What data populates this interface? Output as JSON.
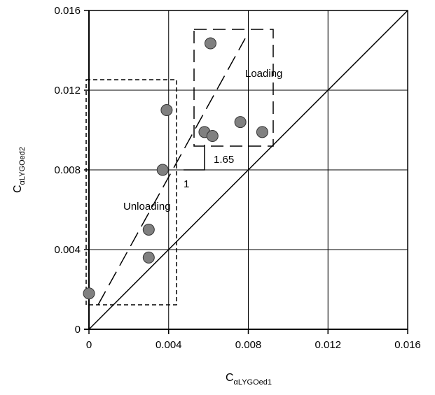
{
  "chart_data": {
    "type": "scatter",
    "x_label": "C",
    "x_label_sub": "αLYGOed1",
    "y_label": "C",
    "y_label_sub": "αLYGOed2",
    "x": [
      0,
      0.003,
      0.003,
      0.0037,
      0.0039,
      0.0058,
      0.0062,
      0.0061,
      0.0076,
      0.0087
    ],
    "values": [
      0.0018,
      0.0036,
      0.005,
      0.008,
      0.011,
      0.0099,
      0.0097,
      0.01435,
      0.0104,
      0.0099
    ],
    "color": "#808080",
    "xlim": [
      0,
      0.016
    ],
    "ylim": [
      0,
      0.016
    ],
    "xticks": [
      0,
      0.004,
      0.008,
      0.012,
      0.016
    ],
    "yticks": [
      0,
      0.004,
      0.008,
      0.012,
      0.016
    ],
    "grid": true,
    "annotations": [
      "Loading",
      "Unloading",
      "1.65",
      "1"
    ]
  }
}
